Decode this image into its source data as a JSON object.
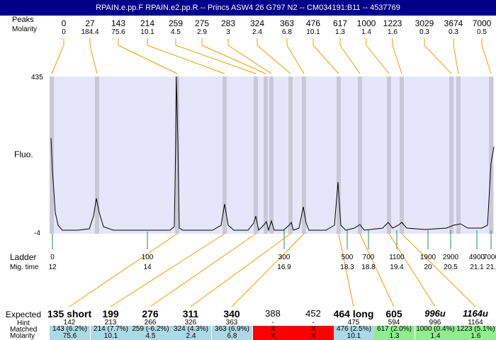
{
  "window": {
    "title": "RPAIN.e.pp.F  RPAIN.e2.pp.R -- Princs ASW4 26 G797 N2 -- CM034191:B11 -- 4537769"
  },
  "labels": {
    "peaks_top": "Peaks",
    "molarity_top": "Molarity",
    "y_max": "435",
    "y_min": "-4",
    "fluo": "Fluo.",
    "ladder": "Ladder",
    "mig_time": "Mig. time",
    "expected": "Expected",
    "hint": "Hint",
    "matched": "Matched",
    "molarity_bottom": "Molarity"
  },
  "peaks": [
    {
      "size": "0",
      "molarity": "0"
    },
    {
      "size": "27",
      "molarity": "184.4"
    },
    {
      "size": "143",
      "molarity": "75.6"
    },
    {
      "size": "214",
      "molarity": "10.1"
    },
    {
      "size": "259",
      "molarity": "4.5"
    },
    {
      "size": "275",
      "molarity": "2.9"
    },
    {
      "size": "283",
      "molarity": "3"
    },
    {
      "size": "324",
      "molarity": "2.4"
    },
    {
      "size": "363",
      "molarity": "6.8"
    },
    {
      "size": "476",
      "molarity": "10.1"
    },
    {
      "size": "617",
      "molarity": "1.3"
    },
    {
      "size": "1000",
      "molarity": "1.4"
    },
    {
      "size": "1223",
      "molarity": "1.6"
    },
    {
      "size": "3029",
      "molarity": "0.3"
    },
    {
      "size": "3674",
      "molarity": "0.3"
    },
    {
      "size": "7000",
      "molarity": "0.5"
    }
  ],
  "ladder": [
    {
      "size": "0",
      "time": "12"
    },
    {
      "size": "100",
      "time": "14"
    },
    {
      "size": "300",
      "time": "16.9"
    },
    {
      "size": "500",
      "time": "18.3"
    },
    {
      "size": "700",
      "time": "18.8"
    },
    {
      "size": "1100",
      "time": "19.4"
    },
    {
      "size": "1900",
      "time": "20"
    },
    {
      "size": "2900",
      "time": "20.5"
    },
    {
      "size": "4900",
      "time": "21.1"
    },
    {
      "size": "7000",
      "time": "21."
    }
  ],
  "expected": [
    {
      "label": "135 short",
      "hint": "142",
      "matched": "143 (6.2%)",
      "molarity": "75.6",
      "status": "ok",
      "style": "bold"
    },
    {
      "label": "199",
      "hint": "213",
      "matched": "214 (7.7%)",
      "molarity": "10.1",
      "status": "ok",
      "style": "bold"
    },
    {
      "label": "276",
      "hint": "266",
      "matched": "259 (-6.2%)",
      "molarity": "4.5",
      "status": "ok",
      "style": "bold"
    },
    {
      "label": "311",
      "hint": "326",
      "matched": "324 (4.3%)",
      "molarity": "2.4",
      "status": "ok",
      "style": "bold"
    },
    {
      "label": "340",
      "hint": "363",
      "matched": "363 (6.9%)",
      "molarity": "6.8",
      "status": "ok",
      "style": "bold"
    },
    {
      "label": "388",
      "hint": "-",
      "matched": "X",
      "molarity": "X",
      "status": "fail",
      "style": "plain"
    },
    {
      "label": "452",
      "hint": "-",
      "matched": "X",
      "molarity": "X",
      "status": "fail",
      "style": "plain"
    },
    {
      "label": "464 long",
      "hint": "475",
      "matched": "476 (2.5%)",
      "molarity": "10.1",
      "status": "ok",
      "style": "bold"
    },
    {
      "label": "605",
      "hint": "594",
      "matched": "617 (2.0%)",
      "molarity": "1.3",
      "status": "good",
      "style": "bold"
    },
    {
      "label": "996u",
      "hint": "996",
      "matched": "1000 (0.4%)",
      "molarity": "1.4",
      "status": "good",
      "style": "ital"
    },
    {
      "label": "1164u",
      "hint": "1164",
      "matched": "1223 (5.1%)",
      "molarity": "1.6",
      "status": "good",
      "style": "ital"
    }
  ],
  "colors": {
    "title_bg": "#00008b",
    "plot_bg": "#e6e6fa",
    "peak_band": "#c8c8d8",
    "connector": "#e6a000",
    "ladder_tick": "#2e8b57",
    "cell_ok": "#add8e6",
    "cell_good": "#90ee90",
    "cell_fail": "#ff0000"
  }
}
